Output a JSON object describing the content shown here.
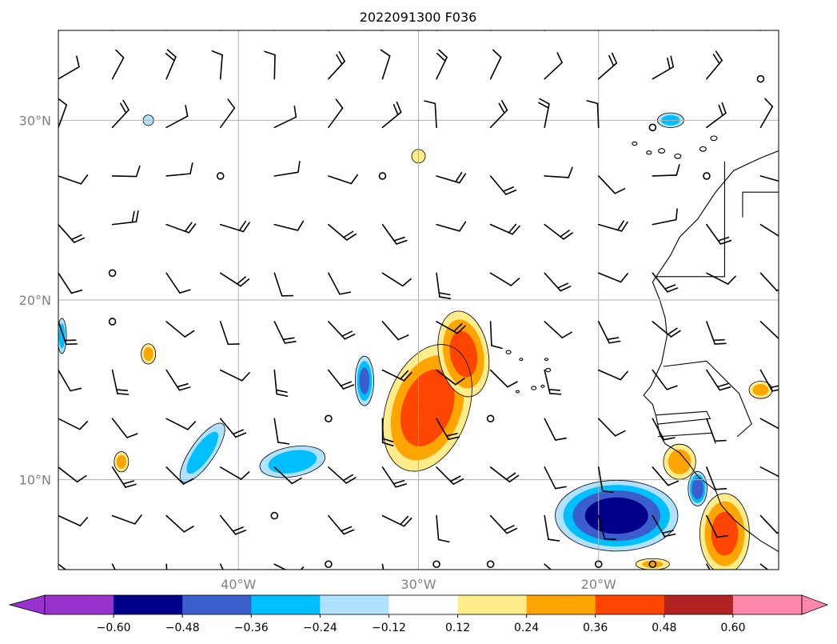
{
  "chart_data": {
    "type": "heatmap",
    "title": "2022091300 F036",
    "x_ticks": [
      {
        "value": -40,
        "label": "40°W"
      },
      {
        "value": -30,
        "label": "30°W"
      },
      {
        "value": -20,
        "label": "20°W"
      }
    ],
    "y_ticks": [
      {
        "value": 30,
        "label": "30°N"
      },
      {
        "value": 20,
        "label": "20°N"
      },
      {
        "value": 10,
        "label": "10°N"
      }
    ],
    "lon_range": [
      -50,
      -10
    ],
    "lat_range": [
      5,
      35
    ],
    "grid": true,
    "colorbar": {
      "orientation": "horizontal",
      "extend": "both",
      "levels": [
        -0.72,
        -0.6,
        -0.48,
        -0.36,
        -0.24,
        -0.12,
        0.12,
        0.24,
        0.36,
        0.48,
        0.6,
        0.72
      ],
      "tick_labels": [
        "−0.60",
        "−0.48",
        "−0.36",
        "−0.24",
        "−0.12",
        "0.12",
        "0.24",
        "0.36",
        "0.48",
        "0.60"
      ],
      "under_color": "#9932cc",
      "over_color": "#ff88aa",
      "colors": [
        "#00008b",
        "#3a5fcd",
        "#00bfff",
        "#b0e2ff",
        "#ffffff",
        "#ffec8b",
        "#ffa500",
        "#ff4500",
        "#b22222"
      ]
    },
    "contour_features": [
      {
        "sign": "positive",
        "lon": -29.5,
        "lat": 14,
        "peak": 0.44
      },
      {
        "sign": "positive",
        "lon": -27.5,
        "lat": 17,
        "peak": 0.4
      },
      {
        "sign": "positive",
        "lon": -13,
        "lat": 7,
        "peak": 0.4
      },
      {
        "sign": "positive",
        "lon": -15.5,
        "lat": 11,
        "peak": 0.3
      },
      {
        "sign": "positive",
        "lon": -45,
        "lat": 17,
        "peak": 0.28
      },
      {
        "sign": "positive",
        "lon": -46.5,
        "lat": 11,
        "peak": 0.28
      },
      {
        "sign": "positive",
        "lon": -30,
        "lat": 28,
        "peak": 0.22
      },
      {
        "sign": "positive",
        "lon": -11,
        "lat": 15,
        "peak": 0.28
      },
      {
        "sign": "positive",
        "lon": -17,
        "lat": 5.3,
        "peak": 0.25
      },
      {
        "sign": "negative",
        "lon": -19,
        "lat": 8,
        "peak": -0.55
      },
      {
        "sign": "negative",
        "lon": -37,
        "lat": 11,
        "peak": -0.33
      },
      {
        "sign": "negative",
        "lon": -33,
        "lat": 15.5,
        "peak": -0.4
      },
      {
        "sign": "negative",
        "lon": -42,
        "lat": 11.5,
        "peak": -0.3
      },
      {
        "sign": "negative",
        "lon": -14.5,
        "lat": 9.5,
        "peak": -0.45
      },
      {
        "sign": "negative",
        "lon": -16,
        "lat": 30,
        "peak": -0.3
      },
      {
        "sign": "negative",
        "lon": -49.8,
        "lat": 18,
        "peak": -0.3
      },
      {
        "sign": "negative",
        "lon": -45,
        "lat": 30,
        "peak": -0.2
      }
    ],
    "wind_barbs": "grid of wind barbs over the ocean, mostly easterly trade winds"
  }
}
